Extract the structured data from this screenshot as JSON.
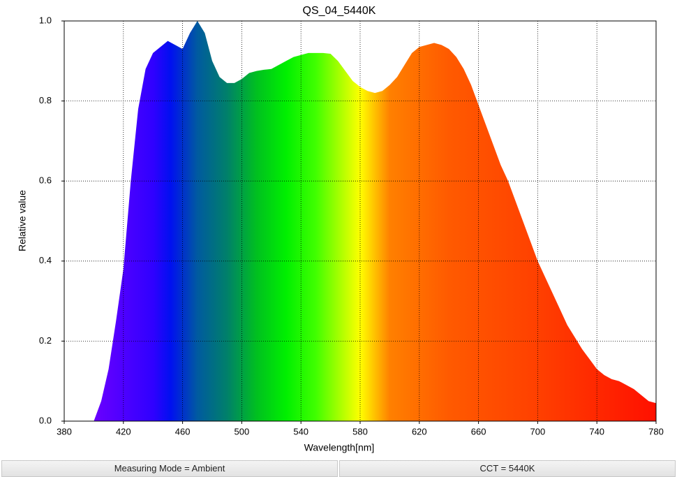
{
  "chart_data": {
    "type": "area",
    "title": "QS_04_5440K",
    "x_label": "Wavelength[nm]",
    "y_label": "Relative value",
    "x": [
      400,
      405,
      410,
      415,
      420,
      425,
      430,
      435,
      440,
      445,
      450,
      455,
      460,
      465,
      470,
      475,
      480,
      485,
      490,
      495,
      500,
      505,
      510,
      515,
      520,
      525,
      530,
      535,
      540,
      545,
      550,
      555,
      560,
      565,
      570,
      575,
      580,
      585,
      590,
      595,
      600,
      605,
      610,
      615,
      620,
      625,
      630,
      635,
      640,
      645,
      650,
      655,
      660,
      665,
      670,
      675,
      680,
      685,
      690,
      695,
      700,
      705,
      710,
      715,
      720,
      725,
      730,
      735,
      740,
      745,
      750,
      755,
      760,
      765,
      770,
      775,
      780
    ],
    "values": [
      0,
      0.05,
      0.13,
      0.25,
      0.38,
      0.6,
      0.78,
      0.88,
      0.92,
      0.935,
      0.95,
      0.94,
      0.93,
      0.97,
      1.0,
      0.97,
      0.9,
      0.86,
      0.845,
      0.845,
      0.855,
      0.87,
      0.875,
      0.878,
      0.88,
      0.89,
      0.9,
      0.91,
      0.915,
      0.92,
      0.92,
      0.92,
      0.918,
      0.9,
      0.875,
      0.85,
      0.835,
      0.825,
      0.82,
      0.825,
      0.84,
      0.86,
      0.89,
      0.92,
      0.935,
      0.94,
      0.945,
      0.94,
      0.93,
      0.91,
      0.88,
      0.84,
      0.79,
      0.74,
      0.69,
      0.64,
      0.6,
      0.55,
      0.5,
      0.45,
      0.4,
      0.36,
      0.32,
      0.28,
      0.24,
      0.21,
      0.18,
      0.155,
      0.13,
      0.115,
      0.105,
      0.1,
      0.09,
      0.08,
      0.065,
      0.05,
      0.045
    ],
    "spectrum_colors": [
      {
        "x": 400,
        "color": "#6a00ff"
      },
      {
        "x": 440,
        "color": "#3000ff"
      },
      {
        "x": 452,
        "color": "#0010f0"
      },
      {
        "x": 470,
        "color": "#005aa0"
      },
      {
        "x": 490,
        "color": "#00806a"
      },
      {
        "x": 510,
        "color": "#00c020"
      },
      {
        "x": 530,
        "color": "#00f000"
      },
      {
        "x": 550,
        "color": "#40ff00"
      },
      {
        "x": 570,
        "color": "#c0ff00"
      },
      {
        "x": 580,
        "color": "#ffff00"
      },
      {
        "x": 590,
        "color": "#ffc000"
      },
      {
        "x": 600,
        "color": "#ff8000"
      },
      {
        "x": 640,
        "color": "#ff5a00"
      },
      {
        "x": 700,
        "color": "#ff4000"
      },
      {
        "x": 780,
        "color": "#ff1000"
      }
    ],
    "xlim": [
      380,
      780
    ],
    "xticks": [
      380,
      420,
      460,
      500,
      540,
      580,
      620,
      660,
      700,
      740,
      780
    ],
    "ylim": [
      0,
      1
    ],
    "yticks": [
      {
        "value": 0,
        "label": "0.0"
      },
      0.2,
      0.4,
      0.6,
      0.8,
      {
        "value": 1,
        "label": "1.0"
      }
    ],
    "grid": true
  },
  "status_bar": [
    "Measuring Mode = Ambient",
    "CCT = 5440K"
  ]
}
